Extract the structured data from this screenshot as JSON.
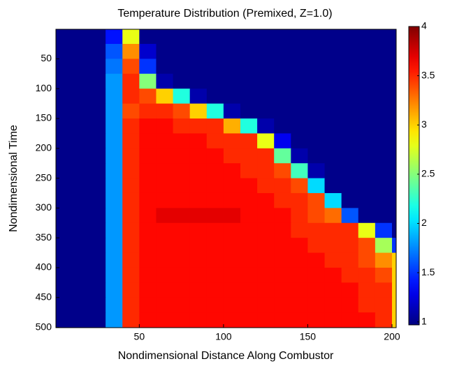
{
  "chart_data": {
    "type": "heatmap",
    "title": "Temperature Distribution (Premixed, Z=1.0)",
    "x_label": "Nondimensional Distance Along Combustor",
    "y_label": "Nondimensional Time",
    "x": [
      5,
      15,
      25,
      35,
      45,
      55,
      65,
      75,
      85,
      95,
      105,
      115,
      125,
      135,
      145,
      155,
      165,
      175,
      185,
      195,
      205
    ],
    "y": [
      12.5,
      37.5,
      62.5,
      87.5,
      112.5,
      137.5,
      162.5,
      187.5,
      212.5,
      237.5,
      262.5,
      287.5,
      312.5,
      337.5,
      362.5,
      387.5,
      412.5,
      437.5,
      462.5,
      487.5
    ],
    "z": [
      [
        1,
        1,
        1,
        1.4,
        2.8,
        1,
        1,
        1,
        1,
        1,
        1,
        1,
        1,
        1,
        1,
        1,
        1,
        1,
        1,
        1,
        1
      ],
      [
        1,
        1,
        1,
        1.6,
        3.2,
        1.2,
        1,
        1,
        1,
        1,
        1,
        1,
        1,
        1,
        1,
        1,
        1,
        1,
        1,
        1,
        1
      ],
      [
        1,
        1,
        1,
        1.7,
        3.4,
        1.5,
        1,
        1,
        1,
        1,
        1,
        1,
        1,
        1,
        1,
        1,
        1,
        1,
        1,
        1,
        1
      ],
      [
        1,
        1,
        1,
        1.8,
        3.5,
        2.5,
        1.1,
        1,
        1,
        1,
        1,
        1,
        1,
        1,
        1,
        1,
        1,
        1,
        1,
        1,
        1
      ],
      [
        1,
        1,
        1,
        1.8,
        3.5,
        3.4,
        3.0,
        2.2,
        1.1,
        1,
        1,
        1,
        1,
        1,
        1,
        1,
        1,
        1,
        1,
        1,
        1
      ],
      [
        1,
        1,
        1,
        1.8,
        3.4,
        3.5,
        3.5,
        3.4,
        3.0,
        2.2,
        1.1,
        1,
        1,
        1,
        1,
        1,
        1,
        1,
        1,
        1,
        1
      ],
      [
        1,
        1,
        1,
        1.8,
        3.5,
        3.6,
        3.6,
        3.5,
        3.5,
        3.5,
        3.1,
        2.2,
        1.1,
        1,
        1,
        1,
        1,
        1,
        1,
        1,
        1
      ],
      [
        1,
        1,
        1,
        1.8,
        3.5,
        3.6,
        3.6,
        3.6,
        3.6,
        3.5,
        3.5,
        3.5,
        2.8,
        1.3,
        1,
        1,
        1,
        1,
        1,
        1,
        1
      ],
      [
        1,
        1,
        1,
        1.8,
        3.5,
        3.6,
        3.6,
        3.6,
        3.6,
        3.6,
        3.5,
        3.5,
        3.5,
        2.4,
        1.1,
        1,
        1,
        1,
        1,
        1,
        1
      ],
      [
        1,
        1,
        1,
        1.8,
        3.5,
        3.6,
        3.6,
        3.6,
        3.6,
        3.6,
        3.6,
        3.5,
        3.5,
        3.4,
        2.3,
        1.1,
        1,
        1,
        1,
        1,
        1
      ],
      [
        1,
        1,
        1,
        1.8,
        3.5,
        3.6,
        3.6,
        3.6,
        3.6,
        3.6,
        3.6,
        3.6,
        3.5,
        3.5,
        3.4,
        2.0,
        1,
        1,
        1,
        1,
        1
      ],
      [
        1,
        1,
        1,
        1.8,
        3.5,
        3.6,
        3.6,
        3.6,
        3.6,
        3.6,
        3.6,
        3.6,
        3.6,
        3.5,
        3.5,
        3.4,
        2.0,
        1,
        1,
        1,
        1
      ],
      [
        1,
        1,
        1,
        1.8,
        3.5,
        3.6,
        3.7,
        3.7,
        3.7,
        3.7,
        3.7,
        3.6,
        3.6,
        3.6,
        3.5,
        3.4,
        3.3,
        1.6,
        1,
        1,
        1
      ],
      [
        1,
        1,
        1,
        1.8,
        3.5,
        3.6,
        3.6,
        3.6,
        3.6,
        3.6,
        3.6,
        3.6,
        3.6,
        3.6,
        3.5,
        3.5,
        3.5,
        3.5,
        2.8,
        1.5,
        1
      ],
      [
        1,
        1,
        1,
        1.8,
        3.5,
        3.6,
        3.6,
        3.6,
        3.6,
        3.6,
        3.6,
        3.6,
        3.6,
        3.6,
        3.6,
        3.5,
        3.5,
        3.5,
        3.4,
        2.6,
        1.5
      ],
      [
        1,
        1,
        1,
        1.8,
        3.5,
        3.6,
        3.6,
        3.6,
        3.6,
        3.6,
        3.6,
        3.6,
        3.6,
        3.6,
        3.6,
        3.6,
        3.5,
        3.5,
        3.4,
        3.2,
        3.0
      ],
      [
        1,
        1,
        1,
        1.8,
        3.5,
        3.6,
        3.6,
        3.6,
        3.6,
        3.6,
        3.6,
        3.6,
        3.6,
        3.6,
        3.6,
        3.6,
        3.6,
        3.5,
        3.5,
        3.4,
        3.0
      ],
      [
        1,
        1,
        1,
        1.8,
        3.5,
        3.6,
        3.6,
        3.6,
        3.6,
        3.6,
        3.6,
        3.6,
        3.6,
        3.6,
        3.6,
        3.6,
        3.6,
        3.6,
        3.5,
        3.5,
        3.0
      ],
      [
        1,
        1,
        1,
        1.8,
        3.5,
        3.6,
        3.6,
        3.6,
        3.6,
        3.6,
        3.6,
        3.6,
        3.6,
        3.6,
        3.6,
        3.6,
        3.6,
        3.6,
        3.5,
        3.5,
        3.0
      ],
      [
        1,
        1,
        1,
        1.8,
        3.5,
        3.6,
        3.6,
        3.6,
        3.6,
        3.6,
        3.6,
        3.6,
        3.6,
        3.6,
        3.6,
        3.6,
        3.6,
        3.6,
        3.6,
        3.5,
        3.0
      ]
    ],
    "xlim": [
      0.5,
      202.5
    ],
    "xticks": [
      50,
      100,
      150,
      200
    ],
    "ylim": [
      0.5,
      500.5
    ],
    "yticks": [
      50,
      100,
      150,
      200,
      250,
      300,
      350,
      400,
      450,
      500
    ],
    "y_reversed": true,
    "colormap": "jet",
    "clim": [
      0.97,
      4
    ],
    "cticks": [
      1,
      1.5,
      2,
      2.5,
      3,
      3.5,
      4
    ]
  }
}
